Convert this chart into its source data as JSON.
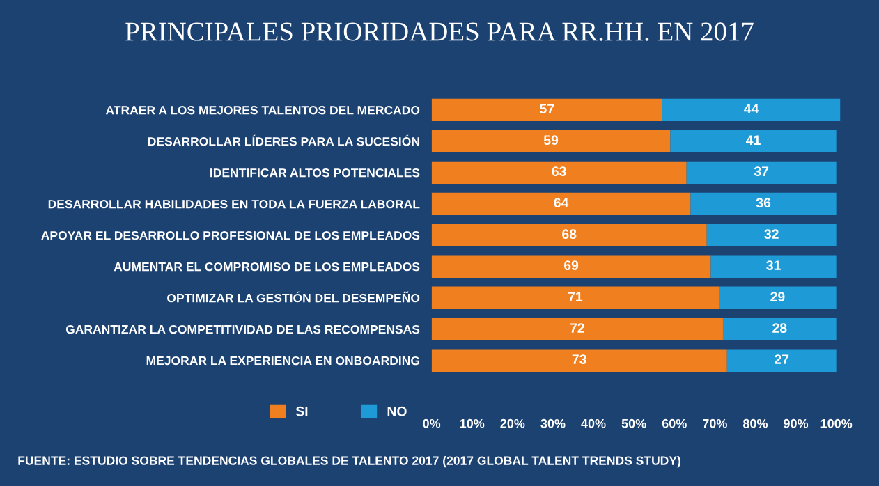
{
  "chart_data": {
    "type": "bar",
    "orientation": "horizontal",
    "stacked": true,
    "title": "PRINCIPALES PRIORIDADES PARA RR.HH. EN 2017",
    "categories": [
      "ATRAER A LOS MEJORES TALENTOS DEL MERCADO",
      "DESARROLLAR LÍDERES PARA LA SUCESIÓN",
      "IDENTIFICAR ALTOS POTENCIALES",
      "DESARROLLAR HABILIDADES EN TODA LA FUERZA LABORAL",
      "APOYAR EL DESARROLLO PROFESIONAL DE LOS EMPLEADOS",
      "AUMENTAR EL COMPROMISO DE LOS EMPLEADOS",
      "OPTIMIZAR LA GESTIÓN DEL DESEMPEÑO",
      "GARANTIZAR LA COMPETITIVIDAD DE LAS RECOMPENSAS",
      "MEJORAR LA EXPERIENCIA EN ONBOARDING"
    ],
    "series": [
      {
        "name": "SI",
        "color": "#f07f1f",
        "values": [
          57,
          59,
          63,
          64,
          68,
          69,
          71,
          72,
          73
        ]
      },
      {
        "name": "NO",
        "color": "#1e9ad6",
        "values": [
          44,
          41,
          37,
          36,
          32,
          31,
          29,
          28,
          27
        ]
      }
    ],
    "xlim": [
      0,
      101
    ],
    "xticks": [
      {
        "value": 0,
        "label": "0%"
      },
      {
        "value": 10,
        "label": "10%"
      },
      {
        "value": 20,
        "label": "20%"
      },
      {
        "value": 30,
        "label": "30%"
      },
      {
        "value": 40,
        "label": "40%"
      },
      {
        "value": 50,
        "label": "50%"
      },
      {
        "value": 60,
        "label": "60%"
      },
      {
        "value": 70,
        "label": "70%"
      },
      {
        "value": 80,
        "label": "80%"
      },
      {
        "value": 90,
        "label": "90%"
      },
      {
        "value": 100,
        "label": "100%"
      }
    ],
    "data_labels": true,
    "grid": false,
    "legend": "bottom left",
    "annotations": [
      "FUENTE: ESTUDIO SOBRE TENDENCIAS GLOBALES DE TALENTO 2017 (2017 GLOBAL TALENT TRENDS STUDY)"
    ]
  }
}
